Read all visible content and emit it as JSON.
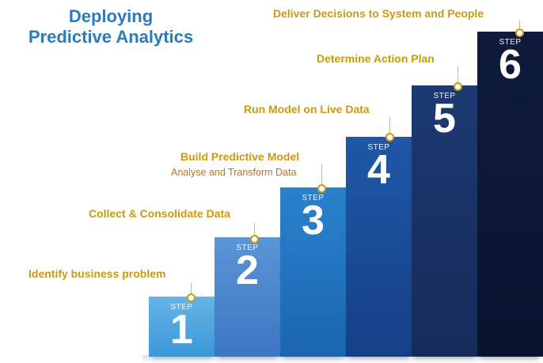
{
  "title": {
    "line1": "Deploying",
    "line2": "Predictive Analytics"
  },
  "step_word": "STEP",
  "steps": [
    {
      "number": "1",
      "label": "Identify business problem",
      "color": "#67b4e6",
      "color_dark": "#3a98d9"
    },
    {
      "number": "2",
      "label": "Collect & Consolidate Data",
      "color": "#5a95d6",
      "color_dark": "#3d76c3"
    },
    {
      "number": "3",
      "label": "Build Predictive Model",
      "sublabel": "Analyse and Transform Data",
      "color": "#2a82cc",
      "color_dark": "#1b65b0"
    },
    {
      "number": "4",
      "label": "Run Model on Live Data",
      "color": "#1f58a8",
      "color_dark": "#163f86"
    },
    {
      "number": "5",
      "label": "Determine Action Plan",
      "color": "#1c3a73",
      "color_dark": "#152b58"
    },
    {
      "number": "6",
      "label": "Deliver Decisions to System and People",
      "color": "#0f1b3c",
      "color_dark": "#0a1330"
    }
  ],
  "label_color": "#c99a0f",
  "sublabel_color": "#c2731a"
}
